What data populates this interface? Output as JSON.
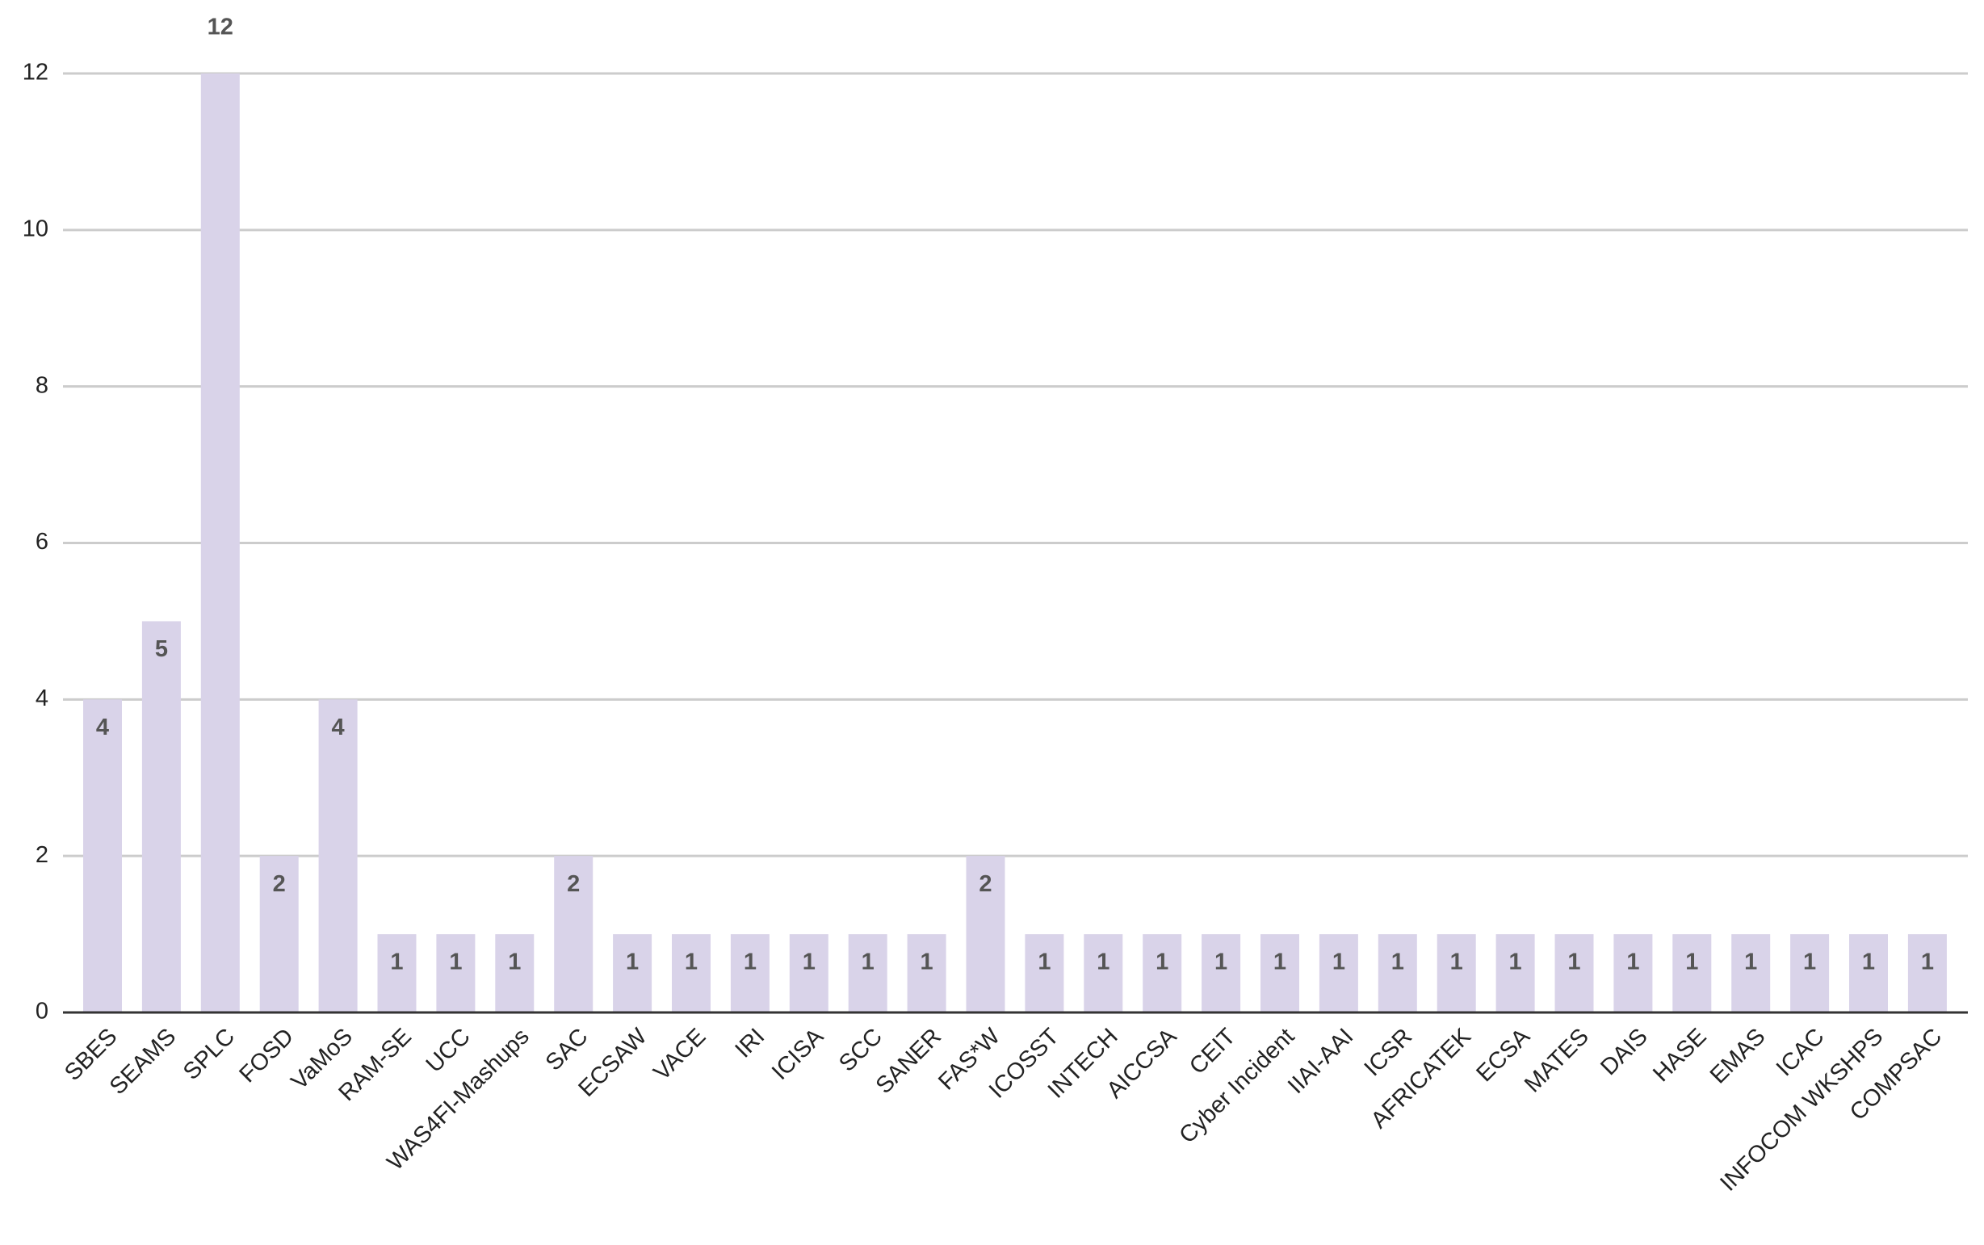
{
  "chart_data": {
    "type": "bar",
    "categories": [
      "SBES",
      "SEAMS",
      "SPLC",
      "FOSD",
      "VaMoS",
      "RAM-SE",
      "UCC",
      "WAS4FI-Mashups",
      "SAC",
      "ECSAW",
      "VACE",
      "IRI",
      "ICISA",
      "SCC",
      "SANER",
      "FAS*W",
      "ICOSST",
      "INTECH",
      "AICCSA",
      "CEIT",
      "Cyber Incident",
      "IIAI-AAI",
      "ICSR",
      "AFRICATEK",
      "ECSA",
      "MATES",
      "DAIS",
      "HASE",
      "EMAS",
      "ICAC",
      "INFOCOM WKSHPS",
      "COMPSAC"
    ],
    "values": [
      4,
      5,
      12,
      2,
      4,
      1,
      1,
      1,
      2,
      1,
      1,
      1,
      1,
      1,
      1,
      2,
      1,
      1,
      1,
      1,
      1,
      1,
      1,
      1,
      1,
      1,
      1,
      1,
      1,
      1,
      1,
      1
    ],
    "color": "#d9d3e9",
    "ylim": [
      0,
      12
    ],
    "yticks": [
      0,
      2,
      4,
      6,
      8,
      10,
      12
    ],
    "grid": true
  }
}
